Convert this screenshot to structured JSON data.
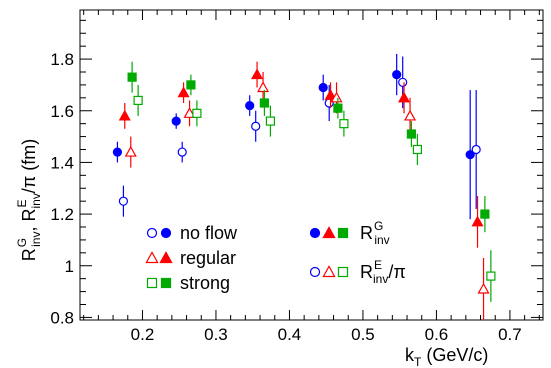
{
  "chart_data": {
    "type": "scatter",
    "xlabel": "k",
    "xlabel_sub": "T",
    "xlabel_unit": " (GeV/c)",
    "ylabel_parts": {
      "r1": "R",
      "r1_sup": "G",
      "r1_sub": "inv",
      "comma": ", ",
      "r2": "R",
      "r2_sup": "E",
      "r2_sub": "inv",
      "slash": "/",
      "pi": "π",
      "unit": " (fm)"
    },
    "xlim": [
      0.115,
      0.745
    ],
    "ylim": [
      0.79,
      1.99
    ],
    "xticks": [
      0.2,
      0.3,
      0.4,
      0.5,
      0.6,
      0.7
    ],
    "xtick_labels": [
      "0.2",
      "0.3",
      "0.4",
      "0.5",
      "0.6",
      "0.7"
    ],
    "yticks": [
      0.8,
      1.0,
      1.2,
      1.4,
      1.6,
      1.8
    ],
    "ytick_labels": [
      "0.8",
      "1",
      "1.2",
      "1.4",
      "1.6",
      "1.8"
    ],
    "grid": false,
    "colors": {
      "no_flow": "#0000ff",
      "regular": "#ff0000",
      "strong": "#00aa00"
    },
    "series": [
      {
        "flow": "no_flow",
        "radius": "G",
        "marker": "circle",
        "filled": true,
        "color": "#0000ff",
        "x": [
          0.17,
          0.25,
          0.35,
          0.45,
          0.55,
          0.65
        ],
        "y": [
          1.44,
          1.56,
          1.62,
          1.69,
          1.74,
          1.43
        ],
        "err": [
          0.04,
          0.03,
          0.04,
          0.05,
          0.08,
          0.25
        ]
      },
      {
        "flow": "no_flow",
        "radius": "E",
        "marker": "circle",
        "filled": false,
        "color": "#0000ff",
        "x": [
          0.17,
          0.25,
          0.35,
          0.45,
          0.55,
          0.65
        ],
        "y": [
          1.25,
          1.44,
          1.54,
          1.63,
          1.71,
          1.45
        ],
        "err": [
          0.06,
          0.04,
          0.06,
          0.07,
          0.1,
          0.23
        ]
      },
      {
        "flow": "regular",
        "radius": "G",
        "marker": "triangle",
        "filled": true,
        "color": "#ff0000",
        "x": [
          0.18,
          0.26,
          0.36,
          0.46,
          0.56,
          0.66
        ],
        "y": [
          1.58,
          1.67,
          1.74,
          1.66,
          1.65,
          1.17
        ],
        "err": [
          0.05,
          0.04,
          0.05,
          0.05,
          0.06,
          0.1
        ]
      },
      {
        "flow": "regular",
        "radius": "E",
        "marker": "triangle",
        "filled": false,
        "color": "#ff0000",
        "x": [
          0.18,
          0.26,
          0.36,
          0.46,
          0.56,
          0.66
        ],
        "y": [
          1.44,
          1.59,
          1.69,
          1.65,
          1.58,
          0.91
        ],
        "err": [
          0.06,
          0.05,
          0.06,
          0.06,
          0.07,
          0.12
        ]
      },
      {
        "flow": "strong",
        "radius": "G",
        "marker": "square",
        "filled": true,
        "color": "#00aa00",
        "x": [
          0.19,
          0.27,
          0.37,
          0.47,
          0.57,
          0.67
        ],
        "y": [
          1.73,
          1.7,
          1.63,
          1.61,
          1.51,
          1.2
        ],
        "err": [
          0.06,
          0.04,
          0.05,
          0.04,
          0.05,
          0.07
        ]
      },
      {
        "flow": "strong",
        "radius": "E",
        "marker": "square",
        "filled": false,
        "color": "#00aa00",
        "x": [
          0.19,
          0.27,
          0.37,
          0.47,
          0.57,
          0.67
        ],
        "y": [
          1.64,
          1.59,
          1.56,
          1.55,
          1.45,
          0.96
        ],
        "err": [
          0.06,
          0.05,
          0.06,
          0.05,
          0.06,
          0.1
        ]
      }
    ],
    "legend_left": [
      {
        "label": "no flow",
        "color": "#0000ff",
        "marker": "circle"
      },
      {
        "label": "regular",
        "color": "#ff0000",
        "marker": "triangle"
      },
      {
        "label": "strong",
        "color": "#00aa00",
        "marker": "square"
      }
    ],
    "legend_right": [
      {
        "radius": "G",
        "main": "R",
        "sup": "G",
        "sub": "inv",
        "filled": true
      },
      {
        "radius": "E",
        "main": "R",
        "sup": "E",
        "sub": "inv",
        "filled": false,
        "suffix": "/",
        "pi": "π"
      }
    ]
  }
}
